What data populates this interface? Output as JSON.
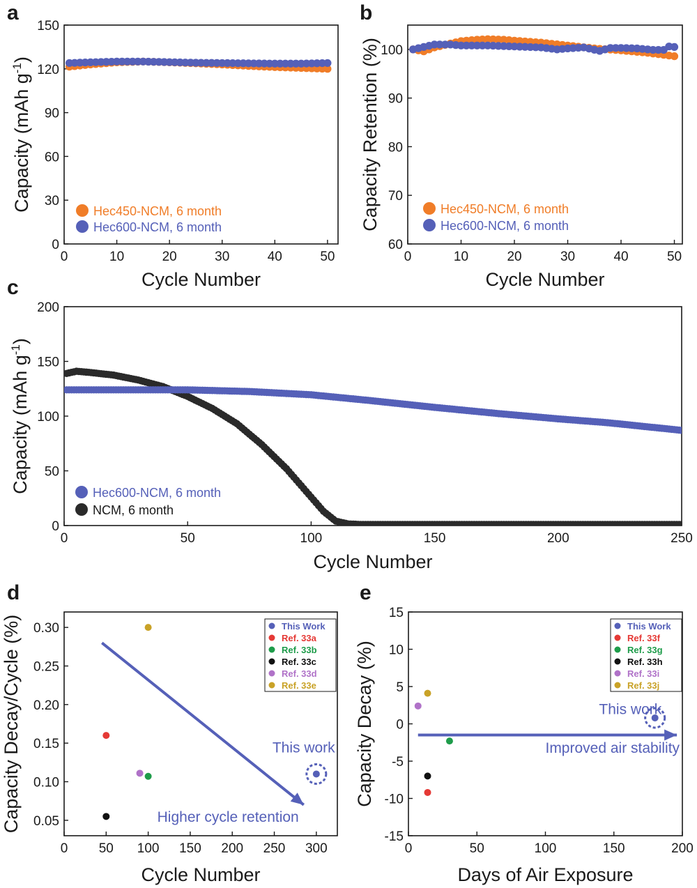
{
  "chart_data": [
    {
      "id": "a",
      "panel_label": "a",
      "type": "scatter",
      "xlabel": "Cycle Number",
      "ylabel": "Capacity (mAh g-1)",
      "ylabel_main": "Capacity (mAh g",
      "ylabel_sup": "-1",
      "ylabel_end": ")",
      "xlim": [
        0,
        52
      ],
      "ylim": [
        0,
        150
      ],
      "xticks": [
        0,
        10,
        20,
        30,
        40,
        50
      ],
      "yticks": [
        0,
        30,
        60,
        90,
        120,
        150
      ],
      "legend": {
        "position": "bottom-left"
      },
      "series": [
        {
          "name": "Hec450-NCM, 6 month",
          "color": "#f07d28",
          "points": [
            [
              1,
              121.5
            ],
            [
              5,
              123
            ],
            [
              10,
              124.5
            ],
            [
              15,
              125
            ],
            [
              20,
              124.5
            ],
            [
              25,
              123.8
            ],
            [
              30,
              123
            ],
            [
              35,
              122
            ],
            [
              40,
              121.2
            ],
            [
              45,
              120.6
            ],
            [
              50,
              120
            ]
          ]
        },
        {
          "name": "Hec600-NCM, 6 month",
          "color": "#5560b8",
          "points": [
            [
              1,
              124
            ],
            [
              5,
              124.5
            ],
            [
              10,
              125
            ],
            [
              15,
              125
            ],
            [
              20,
              124.6
            ],
            [
              25,
              124.2
            ],
            [
              30,
              124
            ],
            [
              35,
              123.8
            ],
            [
              40,
              123.6
            ],
            [
              45,
              123.6
            ],
            [
              50,
              124
            ]
          ]
        }
      ]
    },
    {
      "id": "b",
      "panel_label": "b",
      "type": "scatter",
      "xlabel": "Cycle Number",
      "ylabel": "Capacity Retention (%)",
      "xlim": [
        0,
        51.5
      ],
      "ylim": [
        60,
        105
      ],
      "xticks": [
        0,
        10,
        20,
        30,
        40,
        50
      ],
      "yticks": [
        60,
        70,
        80,
        90,
        100
      ],
      "legend": {
        "position": "bottom-left"
      },
      "series": [
        {
          "name": "Hec450-NCM, 6 month",
          "color": "#f07d28",
          "points": [
            [
              1,
              100
            ],
            [
              3,
              99.6
            ],
            [
              5,
              100.4
            ],
            [
              8,
              101.2
            ],
            [
              10,
              101.7
            ],
            [
              13,
              102
            ],
            [
              15,
              102.1
            ],
            [
              18,
              102
            ],
            [
              20,
              101.8
            ],
            [
              25,
              101.4
            ],
            [
              30,
              100.8
            ],
            [
              35,
              100.2
            ],
            [
              40,
              99.8
            ],
            [
              45,
              99.3
            ],
            [
              50,
              98.6
            ]
          ]
        },
        {
          "name": "Hec600-NCM, 6 month",
          "color": "#5560b8",
          "points": [
            [
              1,
              100
            ],
            [
              3,
              100.5
            ],
            [
              5,
              101
            ],
            [
              8,
              101
            ],
            [
              10,
              100.8
            ],
            [
              15,
              100.8
            ],
            [
              20,
              100.6
            ],
            [
              25,
              100.4
            ],
            [
              28,
              100
            ],
            [
              30,
              100.2
            ],
            [
              33,
              100.4
            ],
            [
              36,
              99.7
            ],
            [
              38,
              100.3
            ],
            [
              40,
              100.3
            ],
            [
              43,
              100.2
            ],
            [
              46,
              99.9
            ],
            [
              48,
              99.9
            ],
            [
              49,
              100.6
            ],
            [
              50,
              100.5
            ]
          ]
        }
      ]
    },
    {
      "id": "c",
      "panel_label": "c",
      "type": "scatter",
      "xlabel": "Cycle Number",
      "ylabel": "Capacity (mAh g-1)",
      "ylabel_main": "Capacity (mAh g",
      "ylabel_sup": "-1",
      "ylabel_end": ")",
      "xlim": [
        0,
        250
      ],
      "ylim": [
        0,
        200
      ],
      "xticks": [
        0,
        50,
        100,
        150,
        200,
        250
      ],
      "yticks": [
        0,
        50,
        100,
        150,
        200
      ],
      "legend": {
        "position": "bottom-left"
      },
      "series": [
        {
          "name": "NCM, 6 month",
          "color": "#2a2a2a",
          "points": [
            [
              1,
              139
            ],
            [
              5,
              141
            ],
            [
              10,
              140
            ],
            [
              20,
              137.5
            ],
            [
              30,
              133
            ],
            [
              40,
              127
            ],
            [
              50,
              118
            ],
            [
              60,
              107
            ],
            [
              70,
              93
            ],
            [
              80,
              74
            ],
            [
              90,
              52
            ],
            [
              100,
              26
            ],
            [
              105,
              13
            ],
            [
              110,
              4
            ],
            [
              115,
              1.5
            ],
            [
              120,
              1
            ],
            [
              150,
              1
            ],
            [
              200,
              1
            ],
            [
              250,
              1
            ]
          ]
        },
        {
          "name": "Hec600-NCM, 6 month",
          "color": "#5560b8",
          "points": [
            [
              1,
              124
            ],
            [
              25,
              124
            ],
            [
              50,
              124
            ],
            [
              75,
              122.5
            ],
            [
              100,
              119.5
            ],
            [
              125,
              114
            ],
            [
              150,
              108
            ],
            [
              175,
              102.5
            ],
            [
              200,
              97.5
            ],
            [
              220,
              94
            ],
            [
              250,
              87
            ]
          ]
        }
      ]
    },
    {
      "id": "d",
      "panel_label": "d",
      "type": "scatter",
      "xlabel": "Cycle Number",
      "ylabel": "Capacity Decay/Cycle (%)",
      "xlim": [
        0,
        325
      ],
      "ylim": [
        0.03,
        0.32
      ],
      "xticks": [
        0,
        50,
        100,
        150,
        200,
        250,
        300
      ],
      "yticks": [
        0.05,
        0.1,
        0.15,
        0.2,
        0.25,
        0.3
      ],
      "ytick_labels": [
        "0.05",
        "0.10",
        "0.15",
        "0.20",
        "0.25",
        "0.30"
      ],
      "legend": {
        "position": "top-right"
      },
      "series": [
        {
          "name": "This Work",
          "color": "#5560b8",
          "points": [
            [
              300,
              0.11
            ]
          ],
          "highlight": true
        },
        {
          "name": "Ref. 33a",
          "color": "#e53935",
          "points": [
            [
              50,
              0.16
            ]
          ]
        },
        {
          "name": "Ref. 33b",
          "color": "#1e9c4a",
          "points": [
            [
              100,
              0.107
            ]
          ]
        },
        {
          "name": "Ref. 33c",
          "color": "#111111",
          "points": [
            [
              50,
              0.055
            ]
          ]
        },
        {
          "name": "Ref. 33d",
          "color": "#b072c8",
          "points": [
            [
              90,
              0.111
            ]
          ]
        },
        {
          "name": "Ref. 33e",
          "color": "#c9a227",
          "points": [
            [
              100,
              0.3
            ]
          ]
        }
      ],
      "arrow": {
        "from": [
          45,
          0.28
        ],
        "to": [
          285,
          0.07
        ],
        "color": "#5560b8"
      },
      "annotations": [
        {
          "text": "This work",
          "x": 285,
          "y": 0.138,
          "color": "#5560b8"
        },
        {
          "text": "Higher cycle retention",
          "x": 195,
          "y": 0.048,
          "color": "#5560b8"
        }
      ]
    },
    {
      "id": "e",
      "panel_label": "e",
      "type": "scatter",
      "xlabel": "Days of Air Exposure",
      "ylabel": "Capacity Decay (%)",
      "xlim": [
        0,
        200
      ],
      "ylim": [
        -15,
        15
      ],
      "xticks": [
        0,
        50,
        100,
        150,
        200
      ],
      "yticks": [
        -15,
        -10,
        -5,
        0,
        5,
        10,
        15
      ],
      "legend": {
        "position": "top-right"
      },
      "series": [
        {
          "name": "This Work",
          "color": "#5560b8",
          "points": [
            [
              180,
              0.8
            ]
          ],
          "highlight": true
        },
        {
          "name": "Ref. 33f",
          "color": "#e53935",
          "points": [
            [
              14,
              -9.2
            ]
          ]
        },
        {
          "name": "Ref. 33g",
          "color": "#1e9c4a",
          "points": [
            [
              30,
              -2.3
            ]
          ]
        },
        {
          "name": "Ref. 33h",
          "color": "#111111",
          "points": [
            [
              14,
              -7
            ]
          ]
        },
        {
          "name": "Ref. 33i",
          "color": "#b072c8",
          "points": [
            [
              7,
              2.4
            ]
          ]
        },
        {
          "name": "Ref. 33j",
          "color": "#c9a227",
          "points": [
            [
              14,
              4.1
            ]
          ]
        }
      ],
      "arrow": {
        "from": [
          7,
          -1.5
        ],
        "to": [
          196,
          -1.5
        ],
        "color": "#5560b8"
      },
      "annotations": [
        {
          "text": "This work",
          "x": 162,
          "y": 1.3,
          "color": "#5560b8"
        },
        {
          "text": "Improved air stability",
          "x": 149,
          "y": -3.9,
          "color": "#5560b8"
        }
      ]
    }
  ]
}
